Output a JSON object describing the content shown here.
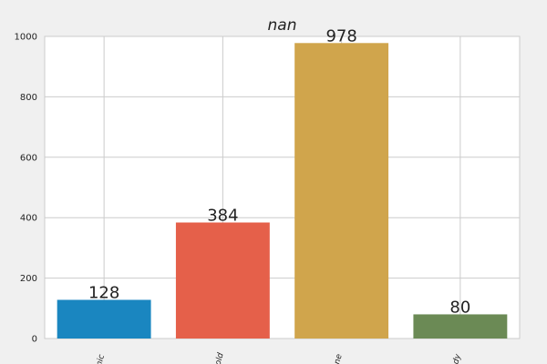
{
  "chart_data": {
    "type": "bar",
    "title": "nan",
    "xlabel": "",
    "ylabel": "",
    "categories": [
      "Generic",
      "Household",
      "Gene",
      "Body"
    ],
    "tick_labels_visible": [
      "inic",
      "hold",
      "ene",
      "ody"
    ],
    "values": [
      128,
      384,
      978,
      80
    ],
    "data_labels": [
      "128",
      "384",
      "978",
      "80"
    ],
    "colors": [
      "#1a86c0",
      "#e5604a",
      "#d0a54c",
      "#6b8a55"
    ],
    "ylim": [
      0,
      1000
    ],
    "yticks": [
      0,
      200,
      400,
      600,
      800,
      1000
    ],
    "ytick_labels": [
      "0",
      "200",
      "400",
      "600",
      "800",
      "1000"
    ],
    "grid": true
  }
}
